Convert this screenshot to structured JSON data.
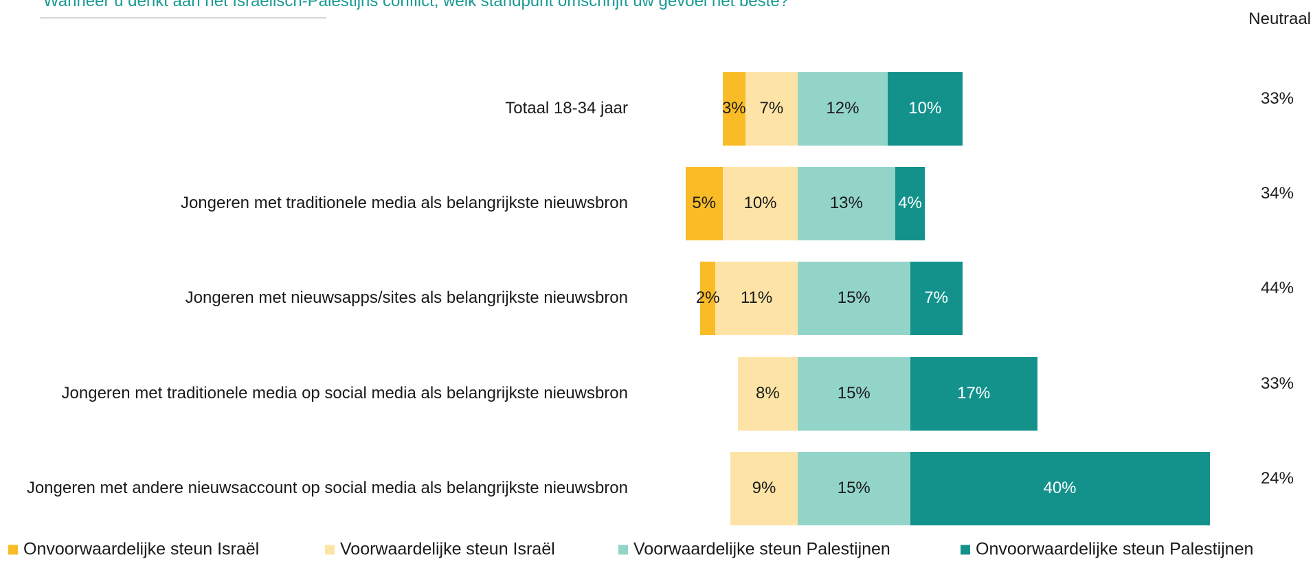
{
  "chart_data": {
    "type": "diverging-stacked-bar",
    "title": "Wanneer u denkt aan het Israëlisch-Palestijns conflict, welk standpunt omschrijft uw gevoel het beste?",
    "categories": [
      "Totaal 18-34 jaar",
      "Jongeren met traditionele media als belangrijkste nieuwsbron",
      "Jongeren met nieuwsapps/sites als belangrijkste nieuwsbron",
      "Jongeren met traditionele media op social media als belangrijkste nieuwsbron",
      "Jongeren met andere nieuwsaccount op social media als belangrijkste nieuwsbron"
    ],
    "series": [
      {
        "name": "Onvoorwaardelijke steun Israël",
        "color": "#f9bc26",
        "label_color": "#1a1a1a",
        "values": [
          3,
          5,
          2,
          null,
          null
        ],
        "value_labels": [
          "3%",
          "5%",
          "2%",
          null,
          null
        ]
      },
      {
        "name": "Voorwaardelijke steun Israël",
        "color": "#fde4a6",
        "label_color": "#1a1a1a",
        "values": [
          7,
          10,
          11,
          8,
          9
        ],
        "value_labels": [
          "7%",
          "10%",
          "11%",
          "8%",
          "9%"
        ]
      },
      {
        "name": "Voorwaardelijke steun Palestijnen",
        "color": "#93d4c9",
        "label_color": "#1a1a1a",
        "values": [
          12,
          13,
          15,
          15,
          15
        ],
        "value_labels": [
          "12%",
          "13%",
          "15%",
          "15%",
          "15%"
        ]
      },
      {
        "name": "Onvoorwaardelijke steun Palestijnen",
        "color": "#13928c",
        "label_color": "#ffffff",
        "values": [
          10,
          4,
          7,
          17,
          40
        ],
        "value_labels": [
          "10%",
          "4%",
          "7%",
          "17%",
          "40%"
        ]
      }
    ],
    "neutral": {
      "label": "Neutraal",
      "values": [
        33,
        34,
        44,
        33,
        24
      ],
      "value_labels": [
        "33%",
        "34%",
        "44%",
        "33%",
        "24%"
      ]
    }
  }
}
